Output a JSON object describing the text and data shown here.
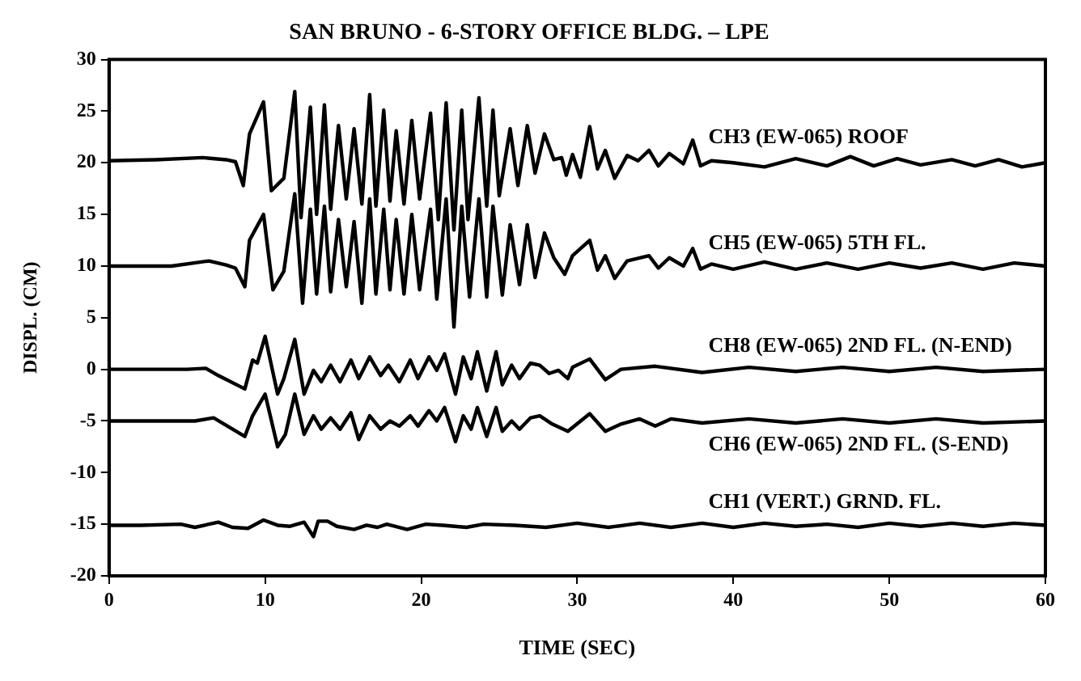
{
  "chart_data": {
    "type": "line",
    "title": "SAN BRUNO - 6-STORY OFFICE BLDG. – LPE",
    "xlabel": "TIME (SEC)",
    "ylabel": "DISPL. (CM)",
    "xlim": [
      0,
      60
    ],
    "xticks": [
      0,
      10,
      20,
      30,
      40,
      50,
      60
    ],
    "ylim": [
      -20,
      30
    ],
    "yticks": [
      -20,
      -15,
      -10,
      -5,
      0,
      5,
      10,
      15,
      20,
      25,
      30
    ],
    "grid": false,
    "legend": false,
    "marker": "none",
    "line_style": "solid",
    "series": [
      {
        "name": "CH3 (EW-065) ROOF",
        "color": "#000000",
        "x": [
          0,
          3,
          6,
          7.5,
          8.1,
          8.6,
          9.0,
          9.9,
          10.4,
          11.2,
          11.9,
          12.3,
          12.9,
          13.3,
          13.8,
          14.2,
          14.7,
          15.2,
          15.7,
          16.2,
          16.7,
          17.1,
          17.6,
          18.0,
          18.4,
          18.9,
          19.4,
          19.9,
          20.6,
          21.1,
          21.6,
          22.1,
          22.6,
          23.0,
          23.7,
          24.2,
          24.6,
          25.0,
          25.7,
          26.2,
          26.8,
          27.3,
          27.9,
          28.5,
          29.0,
          29.3,
          29.7,
          30.2,
          30.8,
          31.3,
          31.8,
          32.4,
          33.2,
          33.9,
          34.6,
          35.2,
          35.9,
          36.8,
          37.4,
          37.9,
          38.6,
          40,
          42,
          44,
          46,
          47.5,
          49,
          50.5,
          52,
          54,
          55.5,
          57,
          58.5,
          60
        ],
        "values": [
          20.2,
          20.3,
          20.5,
          20.3,
          20.1,
          17.8,
          22.8,
          25.9,
          17.3,
          18.5,
          26.9,
          14.7,
          25.4,
          15,
          25.6,
          15.5,
          23.6,
          16.5,
          23.3,
          16,
          26.6,
          15.8,
          25.1,
          16.3,
          23.1,
          16,
          24.1,
          16.5,
          24.8,
          14.5,
          25.8,
          13.5,
          25.1,
          14.5,
          26.3,
          15.8,
          25.1,
          16.8,
          23.3,
          17.8,
          23.6,
          19,
          22.8,
          20.3,
          20.5,
          18.8,
          20.8,
          18.6,
          23.5,
          19.4,
          21.2,
          18.5,
          20.7,
          20.2,
          21.2,
          19.7,
          20.9,
          19.9,
          22.2,
          19.7,
          20.2,
          20,
          19.6,
          20.4,
          19.7,
          20.6,
          19.7,
          20.4,
          19.8,
          20.3,
          19.7,
          20.3,
          19.6,
          20
        ]
      },
      {
        "name": "CH5 (EW-065) 5TH FL.",
        "color": "#000000",
        "x": [
          0,
          4,
          6.4,
          7.5,
          8.1,
          8.7,
          9.0,
          9.9,
          10.5,
          11.2,
          11.9,
          12.4,
          12.9,
          13.3,
          13.8,
          14.2,
          14.7,
          15.2,
          15.7,
          16.2,
          16.7,
          17.1,
          17.6,
          18.0,
          18.4,
          18.9,
          19.4,
          19.9,
          20.6,
          21.0,
          21.6,
          22.1,
          22.6,
          23.1,
          23.7,
          24.2,
          24.6,
          25.2,
          25.7,
          26.3,
          26.8,
          27.3,
          27.9,
          28.5,
          29.2,
          29.7,
          30.8,
          31.3,
          31.8,
          32.4,
          33.2,
          34.6,
          35.2,
          35.9,
          36.8,
          37.4,
          37.9,
          38.6,
          40,
          42,
          44,
          46,
          48,
          50,
          52,
          54,
          56,
          58,
          60
        ],
        "values": [
          10,
          10,
          10.5,
          10.1,
          9.8,
          8,
          12.5,
          15,
          7.7,
          9.5,
          17,
          6.4,
          15.5,
          7.3,
          15.8,
          7.5,
          14.5,
          8,
          14.3,
          6.4,
          16.5,
          7.3,
          15.5,
          7.7,
          14.5,
          7.3,
          15,
          7.7,
          15.5,
          6.8,
          16.5,
          4.1,
          15.8,
          7,
          16.5,
          7,
          15.8,
          7.2,
          14,
          8.2,
          14,
          8.9,
          13.2,
          10.8,
          9.2,
          11,
          12.5,
          9.6,
          11,
          8.8,
          10.5,
          11,
          9.8,
          10.8,
          10,
          11.7,
          9.7,
          10.2,
          9.7,
          10.4,
          9.7,
          10.3,
          9.7,
          10.3,
          9.8,
          10.3,
          9.7,
          10.3,
          10
        ]
      },
      {
        "name": "CH8 (EW-065) 2ND FL. (N-END)",
        "color": "#000000",
        "x": [
          0,
          5,
          6.2,
          7.0,
          8.7,
          9.2,
          9.5,
          10.0,
          10.8,
          11.2,
          11.9,
          12.5,
          13.1,
          13.6,
          14.2,
          14.8,
          15.5,
          16.0,
          16.7,
          17.4,
          17.9,
          18.6,
          19.3,
          19.8,
          20.5,
          21.0,
          21.5,
          22.2,
          22.7,
          23.2,
          23.6,
          24.2,
          24.8,
          25.2,
          25.8,
          26.3,
          27.0,
          27.6,
          28.2,
          28.8,
          29.4,
          29.7,
          30.8,
          31.8,
          32.8,
          35,
          38,
          41,
          44,
          47,
          50,
          53,
          56,
          60
        ],
        "values": [
          0,
          0,
          0.1,
          -0.6,
          -1.9,
          0.9,
          0.6,
          3.2,
          -2.4,
          -0.9,
          2.9,
          -2.4,
          -0.1,
          -1.2,
          0.4,
          -1.2,
          0.9,
          -0.9,
          1.2,
          -0.6,
          0.4,
          -1.2,
          0.9,
          -0.9,
          1.2,
          -0.1,
          1.5,
          -2.4,
          1.2,
          -0.9,
          1.7,
          -2.1,
          1.7,
          -1.5,
          0.4,
          -0.9,
          0.6,
          0.4,
          -0.4,
          -0.1,
          -0.9,
          0.2,
          1,
          -1,
          0,
          0.3,
          -0.3,
          0.2,
          -0.2,
          0.2,
          -0.2,
          0.2,
          -0.2,
          0
        ]
      },
      {
        "name": "CH6 (EW-065) 2ND FL. (S-END)",
        "color": "#000000",
        "x": [
          0,
          5.5,
          6.7,
          8.7,
          9.2,
          10.0,
          10.8,
          11.3,
          11.9,
          12.5,
          13.1,
          13.6,
          14.2,
          14.8,
          15.5,
          16.0,
          16.7,
          17.4,
          18.0,
          18.6,
          19.3,
          19.8,
          20.5,
          21.0,
          21.5,
          22.2,
          22.7,
          23.2,
          23.6,
          24.2,
          24.8,
          25.2,
          25.8,
          26.3,
          27.0,
          27.6,
          28.4,
          29.4,
          30.8,
          31.8,
          32.8,
          34,
          35,
          36,
          38,
          41,
          44,
          47,
          50,
          53,
          56,
          60
        ],
        "values": [
          -5,
          -5,
          -4.7,
          -6.5,
          -4.5,
          -2.4,
          -7.5,
          -6.3,
          -2.4,
          -6.3,
          -4.5,
          -5.8,
          -4.7,
          -5.8,
          -4.2,
          -6.8,
          -4.5,
          -5.8,
          -5,
          -5.5,
          -4.5,
          -5.5,
          -4,
          -5,
          -3.7,
          -7,
          -4.5,
          -5.8,
          -3.7,
          -6.5,
          -3.7,
          -6,
          -5,
          -5.8,
          -4.7,
          -4.5,
          -5.3,
          -6,
          -4.3,
          -6,
          -5.3,
          -4.8,
          -5.5,
          -4.8,
          -5.2,
          -4.8,
          -5.2,
          -4.8,
          -5.2,
          -4.8,
          -5.2,
          -5
        ]
      },
      {
        "name": "CH1 (VERT.) GRND. FL.",
        "color": "#000000",
        "x": [
          0,
          2,
          4.6,
          5.5,
          7.0,
          7.9,
          8.9,
          9.9,
          10.8,
          11.6,
          12.5,
          13.1,
          13.4,
          14.0,
          14.6,
          15.7,
          16.5,
          17.2,
          17.8,
          19.1,
          20.3,
          21.4,
          22.9,
          24,
          26,
          28,
          30,
          32,
          34,
          36,
          38,
          40,
          42,
          44,
          46,
          48,
          50,
          52,
          54,
          56,
          58,
          60
        ],
        "values": [
          -15.1,
          -15.1,
          -15,
          -15.3,
          -14.8,
          -15.3,
          -15.4,
          -14.6,
          -15.1,
          -15.2,
          -14.8,
          -16.2,
          -14.7,
          -14.7,
          -15.2,
          -15.5,
          -15.1,
          -15.3,
          -15,
          -15.5,
          -15,
          -15.1,
          -15.3,
          -15,
          -15.1,
          -15.3,
          -14.9,
          -15.3,
          -14.9,
          -15.3,
          -14.9,
          -15.3,
          -14.9,
          -15.2,
          -15,
          -15.3,
          -14.9,
          -15.2,
          -14.9,
          -15.2,
          -14.9,
          -15.1
        ]
      }
    ]
  }
}
